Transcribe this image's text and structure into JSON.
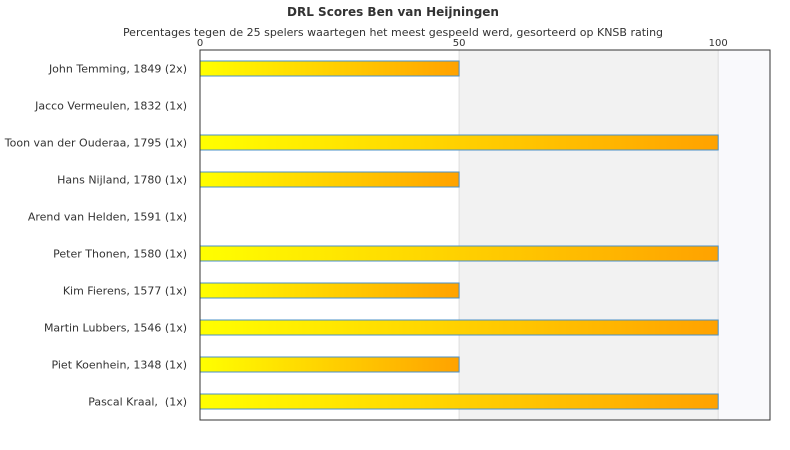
{
  "chart_data": {
    "type": "bar",
    "orientation": "horizontal",
    "title": "DRL Scores Ben van Heijningen",
    "subtitle": "Percentages tegen de 25 spelers waartegen het meest gespeeld werd, gesorteerd op KNSB rating",
    "categories": [
      "John Temming, 1849 (2x)",
      "Jacco Vermeulen, 1832 (1x)",
      "Toon van der Ouderaa, 1795 (1x)",
      "Hans Nijland, 1780 (1x)",
      "Arend van Helden, 1591 (1x)",
      "Peter Thonen, 1580 (1x)",
      "Kim Fierens, 1577 (1x)",
      "Martin Lubbers, 1546 (1x)",
      "Piet Koenhein, 1348 (1x)",
      "Pascal Kraal,  (1x)"
    ],
    "values": [
      50,
      0,
      100,
      50,
      0,
      100,
      50,
      100,
      50,
      100
    ],
    "xlim": [
      0,
      110
    ],
    "xticks": [
      0,
      50,
      100
    ],
    "axis_position": "top",
    "band_shading": "alternating gray above 50",
    "grid": true,
    "colors": {
      "bar_start": "#ffff00",
      "bar_end": "#ffa200",
      "bar_border": "#4a90c8",
      "band_light": "#f2f2f2",
      "band_lighter": "#f9f9fc",
      "gridline": "#dddddd",
      "axis": "#333333"
    }
  }
}
